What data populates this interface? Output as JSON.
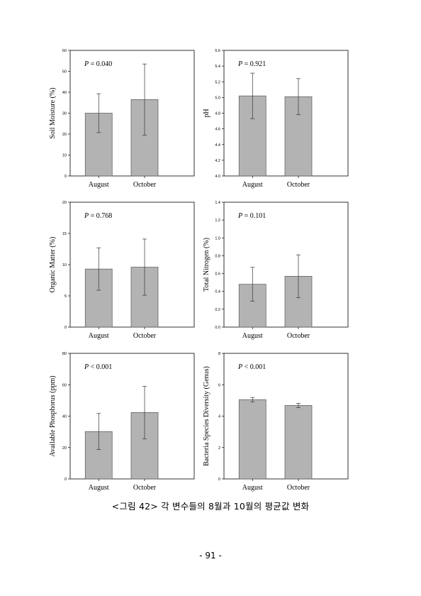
{
  "figure": {
    "caption": "<그림 42> 각 변수들의 8월과 10월의 평균값 변화",
    "page_number": "- 91 -"
  },
  "colors": {
    "bar_fill": "#b3b3b3",
    "bar_stroke": "#555555",
    "axis": "#000000"
  },
  "chart_data": [
    {
      "type": "bar",
      "categories": [
        "August",
        "October"
      ],
      "values": [
        30.0,
        36.5
      ],
      "errors": [
        9.3,
        17.0
      ],
      "ylabel": "Soil Moisture (%)",
      "p_value": "= 0.040",
      "ylim": [
        0,
        60
      ],
      "yticks": [
        "0",
        "10",
        "20",
        "30",
        "40",
        "50",
        "60"
      ]
    },
    {
      "type": "bar",
      "categories": [
        "August",
        "October"
      ],
      "values": [
        5.02,
        5.01
      ],
      "errors": [
        0.29,
        0.23
      ],
      "ylabel": "pH",
      "p_value": "= 0.921",
      "ylim": [
        4.0,
        5.6
      ],
      "yticks": [
        "4.0",
        "4.2",
        "4.4",
        "4.6",
        "4.8",
        "5.0",
        "5.2",
        "5.4",
        "5.6"
      ]
    },
    {
      "type": "bar",
      "categories": [
        "August",
        "October"
      ],
      "values": [
        9.3,
        9.6
      ],
      "errors": [
        3.4,
        4.5
      ],
      "ylabel": "Organic Matter (%)",
      "p_value": "= 0.768",
      "ylim": [
        0,
        20
      ],
      "yticks": [
        "0",
        "5",
        "10",
        "15",
        "20"
      ]
    },
    {
      "type": "bar",
      "categories": [
        "August",
        "October"
      ],
      "values": [
        0.48,
        0.57
      ],
      "errors": [
        0.19,
        0.24
      ],
      "ylabel": "Total Nitrogen (%)",
      "p_value": "= 0.101",
      "ylim": [
        0,
        1.4
      ],
      "yticks": [
        "0.0",
        "0.2",
        "0.4",
        "0.6",
        "0.8",
        "1.0",
        "1.2",
        "1.4"
      ]
    },
    {
      "type": "bar",
      "categories": [
        "August",
        "October"
      ],
      "values": [
        30.2,
        42.3
      ],
      "errors": [
        11.5,
        16.7
      ],
      "ylabel": "Available Phosphorus (ppm)",
      "p_value": "< 0.001",
      "ylim": [
        0,
        80
      ],
      "yticks": [
        "0",
        "20",
        "40",
        "60",
        "80"
      ]
    },
    {
      "type": "bar",
      "categories": [
        "August",
        "October"
      ],
      "values": [
        5.05,
        4.68
      ],
      "errors": [
        0.14,
        0.14
      ],
      "ylabel": "Bacteria Species Diversity (Genus)",
      "p_value": "< 0.001",
      "ylim": [
        0,
        8
      ],
      "yticks": [
        "0",
        "2",
        "4",
        "6",
        "8"
      ]
    }
  ]
}
